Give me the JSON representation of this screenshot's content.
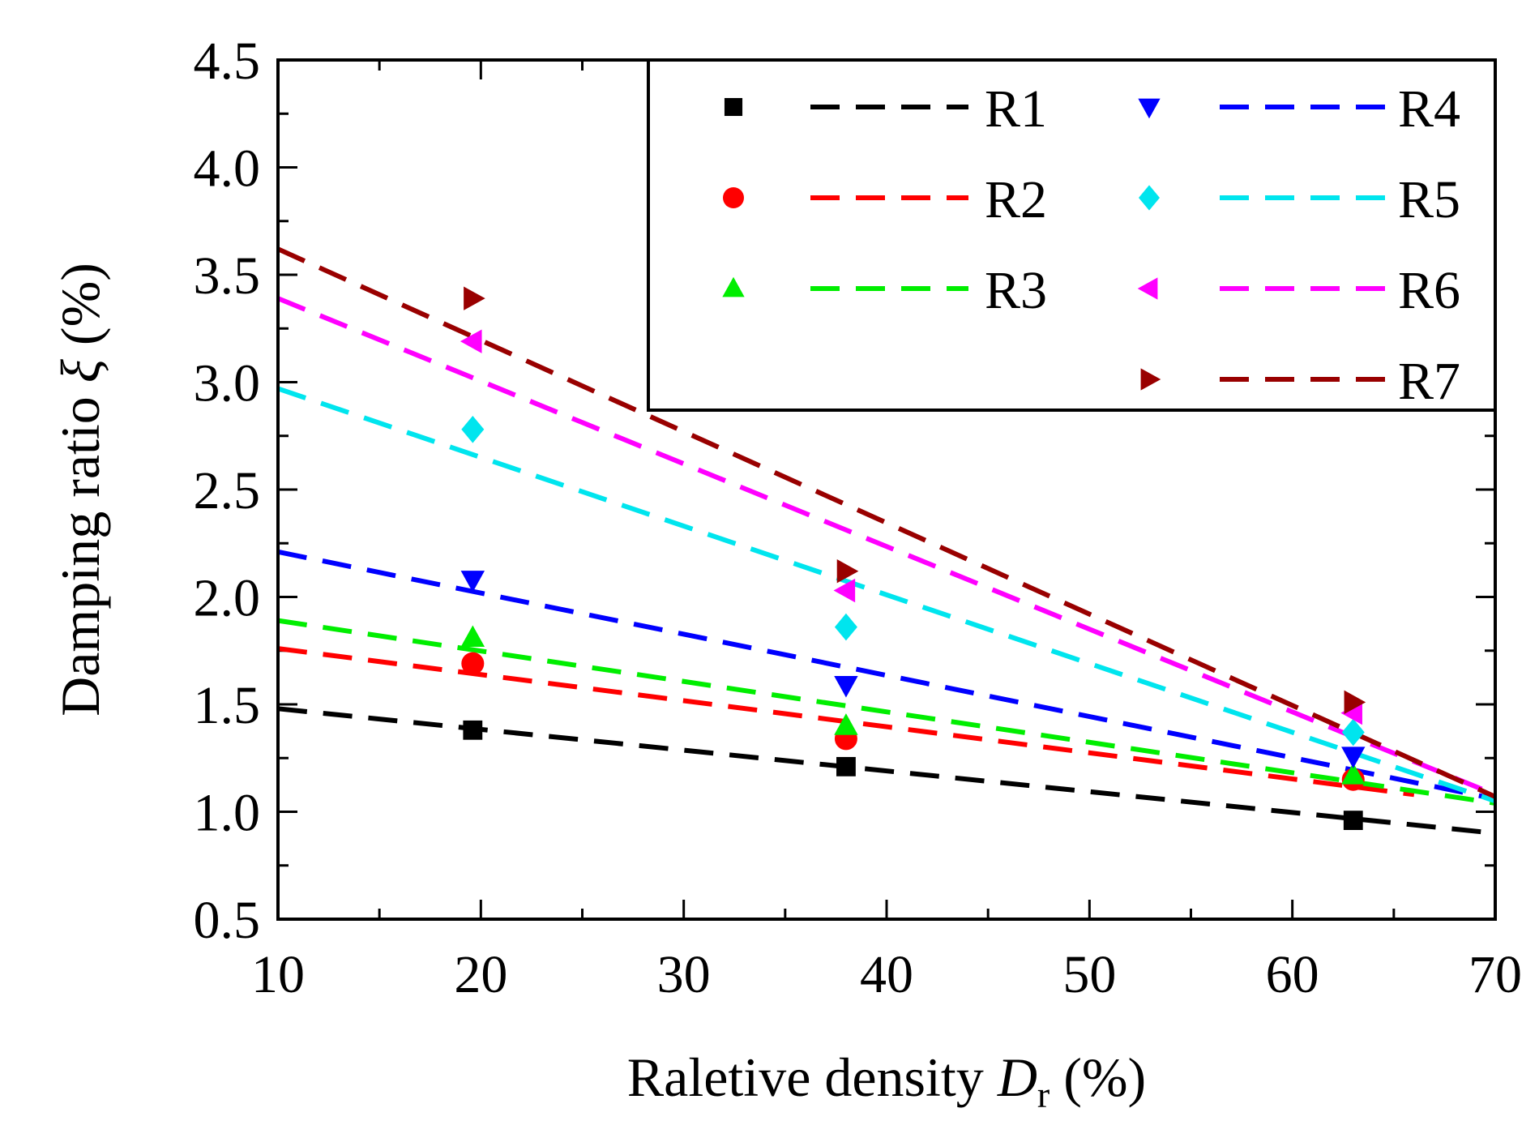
{
  "chart_data": {
    "type": "scatter",
    "title": "",
    "xlabel": {
      "prefix": "Raletive density ",
      "symbol": "D",
      "subscript": "r",
      "suffix": " (%)"
    },
    "ylabel": {
      "prefix": "Damping ratio ",
      "symbol": "ξ",
      "suffix": " (%)"
    },
    "xlim": [
      10,
      70
    ],
    "ylim": [
      0.5,
      4.5
    ],
    "xticks": [
      "10",
      "20",
      "30",
      "40",
      "50",
      "60",
      "70"
    ],
    "yticks": [
      "0.5",
      "1.0",
      "1.5",
      "2.0",
      "2.5",
      "3.0",
      "3.5",
      "4.0",
      "4.5"
    ],
    "legend_position": "top-right",
    "series": [
      {
        "name": "R1",
        "color": "#000000",
        "marker": "square",
        "x": [
          19.6,
          38.0,
          63.0
        ],
        "y": [
          1.38,
          1.21,
          0.96
        ],
        "fit": {
          "x": [
            10,
            70
          ],
          "y": [
            1.48,
            0.9
          ]
        }
      },
      {
        "name": "R2",
        "color": "#ff0000",
        "marker": "circle",
        "x": [
          19.6,
          38.0,
          63.0
        ],
        "y": [
          1.69,
          1.34,
          1.15
        ],
        "fit": {
          "x": [
            10,
            66
          ],
          "y": [
            1.76,
            1.08
          ]
        }
      },
      {
        "name": "R3",
        "color": "#00ee00",
        "marker": "triangle-up",
        "x": [
          19.6,
          38.0,
          63.0
        ],
        "y": [
          1.81,
          1.4,
          1.17
        ],
        "fit": {
          "x": [
            10,
            70
          ],
          "y": [
            1.89,
            1.04
          ]
        }
      },
      {
        "name": "R4",
        "color": "#0000ff",
        "marker": "triangle-down",
        "x": [
          19.6,
          38.0,
          63.0
        ],
        "y": [
          2.08,
          1.59,
          1.26
        ],
        "fit": {
          "x": [
            10,
            70
          ],
          "y": [
            2.21,
            1.06
          ]
        }
      },
      {
        "name": "R5",
        "color": "#00e5ee",
        "marker": "diamond",
        "x": [
          19.6,
          38.0,
          63.0
        ],
        "y": [
          2.78,
          1.86,
          1.37
        ],
        "fit": {
          "x": [
            10,
            70
          ],
          "y": [
            2.97,
            1.05
          ]
        }
      },
      {
        "name": "R6",
        "color": "#ff00ff",
        "marker": "triangle-left",
        "x": [
          19.6,
          38.0,
          63.0
        ],
        "y": [
          3.19,
          2.03,
          1.46
        ],
        "fit": {
          "x": [
            10,
            70
          ],
          "y": [
            3.39,
            1.08
          ]
        }
      },
      {
        "name": "R7",
        "color": "#990000",
        "marker": "triangle-right",
        "x": [
          19.6,
          38.0,
          63.0
        ],
        "y": [
          3.39,
          2.12,
          1.51
        ],
        "fit": {
          "x": [
            10,
            70
          ],
          "y": [
            3.62,
            1.07
          ]
        }
      }
    ]
  }
}
